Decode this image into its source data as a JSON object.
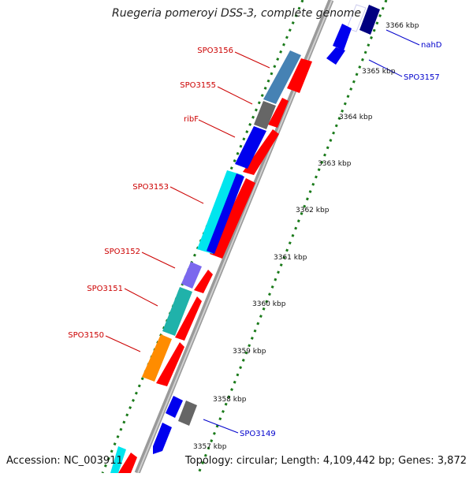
{
  "header": {
    "title": "Ruegeria pomeroyi DSS-3, complete genome"
  },
  "footer": {
    "accession": "Accession: NC_003911",
    "summary": "Topology: circular; Length: 4,109,442 bp; Genes: 3,872"
  },
  "scale": {
    "ticks": [
      "3357 kbp",
      "3358 kbp",
      "3359 kbp",
      "3360 kbp",
      "3361 kbp",
      "3362 kbp",
      "3363 kbp",
      "3364 kbp",
      "3365 kbp",
      "3366 kbp"
    ]
  },
  "genes": {
    "left_labels": [
      "SPO3156",
      "SPO3155",
      "ribF",
      "SPO3153",
      "SPO3152",
      "SPO3151",
      "SPO3150"
    ],
    "right_labels": [
      "nahD",
      "SPO3157",
      "SPO3149"
    ]
  },
  "colors": {
    "label_left": "#cc0000",
    "label_right": "#0000cc",
    "backbone": "#8a8a8a",
    "dotted_ring": "#1a7a1a",
    "red": "#ff0000",
    "blue": "#0000ee",
    "navy": "#000080",
    "steelblue": "#4682b4",
    "gray": "#666666",
    "cyan": "#00e5ee",
    "teal": "#20b2aa",
    "slateblue": "#7b68ee",
    "orange": "#ff8c00"
  }
}
